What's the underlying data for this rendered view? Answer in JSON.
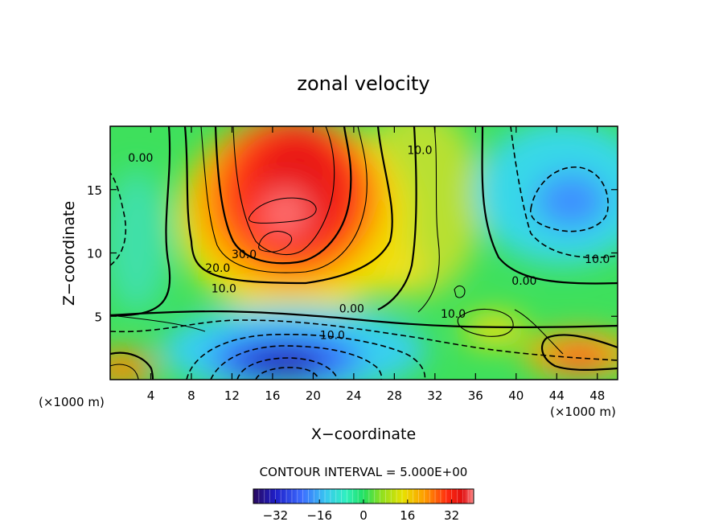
{
  "chart_data": {
    "type": "heatmap",
    "title": "zonal velocity",
    "xlabel": "X−coordinate",
    "ylabel": "Z−coordinate",
    "x_unit_left": "(×1000 m)",
    "x_unit_right": "(×1000 m)",
    "xlim": [
      0,
      50
    ],
    "ylim": [
      0,
      20
    ],
    "x_ticks": [
      4,
      8,
      12,
      16,
      20,
      24,
      28,
      32,
      36,
      40,
      44,
      48
    ],
    "y_ticks": [
      5,
      10,
      15
    ],
    "contour_interval_text": "CONTOUR INTERVAL = 5.000E+00",
    "colorbar": {
      "range": [
        -40,
        40
      ],
      "ticks": [
        -32,
        -16,
        0,
        16,
        32
      ],
      "tick_labels": [
        "−32",
        "−16",
        "0",
        "16",
        "32"
      ]
    },
    "contour_labels": [
      {
        "text": "0.00",
        "x": 3,
        "z": 17.2
      },
      {
        "text": "10.0",
        "x": 30.5,
        "z": 17.8
      },
      {
        "text": "30.0",
        "x": 13.2,
        "z": 9.6
      },
      {
        "text": "20.0",
        "x": 10.6,
        "z": 8.5
      },
      {
        "text": "10.0",
        "x": 11.2,
        "z": 6.9
      },
      {
        "text": "0.00",
        "x": 23.8,
        "z": 5.3
      },
      {
        "text": "10.0",
        "x": 21.9,
        "z": 3.2
      },
      {
        "text": "10.0",
        "x": 33.8,
        "z": 4.9
      },
      {
        "text": "10.0",
        "x": 48.0,
        "z": 9.2
      },
      {
        "text": "0.00",
        "x": 40.8,
        "z": 7.5
      }
    ],
    "features": [
      {
        "kind": "max",
        "x": 17,
        "z": 13,
        "value": 35
      },
      {
        "kind": "min",
        "x": 18,
        "z": 1,
        "value": -38
      },
      {
        "kind": "min",
        "x": 45,
        "z": 14,
        "value": -15
      }
    ],
    "colors": {
      "scale": [
        "#2a0a5e",
        "#1e1ec8",
        "#3c6cff",
        "#38c8f0",
        "#30f0c0",
        "#20e060",
        "#30d020",
        "#8ee020",
        "#e8e000",
        "#ff9a00",
        "#ff2a10",
        "#e01010",
        "#ff8a8a"
      ]
    }
  }
}
